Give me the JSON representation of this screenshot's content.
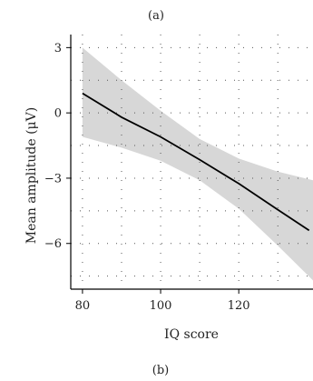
{
  "panel_labels": {
    "top": "(a)",
    "bottom": "(b)"
  },
  "chart_data": {
    "type": "line",
    "xlabel": "IQ score",
    "ylabel": "Mean amplitude (μV)",
    "xlim": [
      77,
      139
    ],
    "ylim": [
      -8.1,
      3.6
    ],
    "xticks": [
      80,
      100,
      120
    ],
    "yticks": [
      3,
      0,
      -3,
      -6
    ],
    "x_tick_labels": [
      "80",
      "100",
      "120"
    ],
    "y_tick_labels": [
      "3",
      "0",
      "−3",
      "−6"
    ],
    "grid_x": [
      80,
      90,
      100,
      110,
      120,
      130
    ],
    "grid_y": [
      3,
      1.5,
      0,
      -1.5,
      -3,
      -4.5,
      -6,
      -7.5
    ],
    "grid": true,
    "series": [
      {
        "points": [
          {
            "x": 80,
            "y": 0.9
          },
          {
            "x": 90,
            "y": -0.2
          },
          {
            "x": 100,
            "y": -1.1
          },
          {
            "x": 110,
            "y": -2.15
          },
          {
            "x": 120,
            "y": -3.25
          },
          {
            "x": 130,
            "y": -4.45
          },
          {
            "x": 138,
            "y": -5.4
          }
        ]
      }
    ],
    "confidence_band": {
      "upper": [
        {
          "x": 80,
          "y": 3.0
        },
        {
          "x": 90,
          "y": 1.5
        },
        {
          "x": 100,
          "y": 0.1
        },
        {
          "x": 110,
          "y": -1.2
        },
        {
          "x": 120,
          "y": -2.1
        },
        {
          "x": 130,
          "y": -2.7
        },
        {
          "x": 139,
          "y": -3.1
        }
      ],
      "lower": [
        {
          "x": 139,
          "y": -7.7
        },
        {
          "x": 130,
          "y": -6.1
        },
        {
          "x": 120,
          "y": -4.4
        },
        {
          "x": 110,
          "y": -3.1
        },
        {
          "x": 100,
          "y": -2.2
        },
        {
          "x": 90,
          "y": -1.6
        },
        {
          "x": 80,
          "y": -1.1
        }
      ]
    },
    "colors": {
      "line": "#000000",
      "band": "#d7d7d7",
      "axes": "#000000",
      "grid": "#555555"
    }
  }
}
